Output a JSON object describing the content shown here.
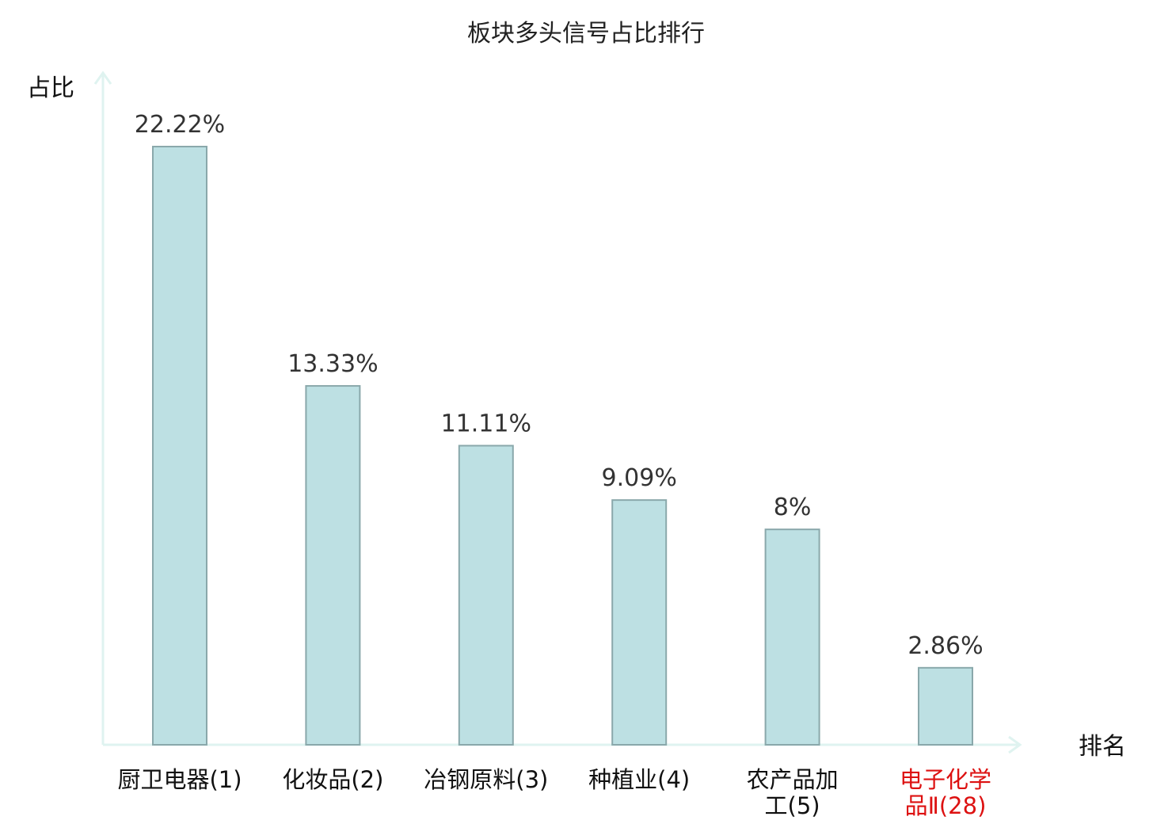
{
  "chart_data": {
    "type": "bar",
    "title": "板块多头信号占比排行",
    "xlabel": "排名",
    "ylabel": "占比",
    "categories": [
      {
        "name": "厨卫电器",
        "rank": "(1)",
        "lines": [
          "厨卫电器(1)"
        ],
        "highlight": false
      },
      {
        "name": "化妆品",
        "rank": "(2)",
        "lines": [
          "化妆品(2)"
        ],
        "highlight": false
      },
      {
        "name": "冶钢原料",
        "rank": "(3)",
        "lines": [
          "冶钢原料(3)"
        ],
        "highlight": false
      },
      {
        "name": "种植业",
        "rank": "(4)",
        "lines": [
          "种植业(4)"
        ],
        "highlight": false
      },
      {
        "name": "农产品加工",
        "rank": "(5)",
        "lines": [
          "农产品加",
          "工(5)"
        ],
        "highlight": false
      },
      {
        "name": "电子化学品Ⅱ",
        "rank": "(28)",
        "lines": [
          "电子化学",
          "品Ⅱ(28)"
        ],
        "highlight": true
      }
    ],
    "values": [
      22.22,
      13.33,
      11.11,
      9.09,
      8,
      2.86
    ],
    "value_labels": [
      "22.22%",
      "13.33%",
      "11.11%",
      "9.09%",
      "8%",
      "2.86%"
    ],
    "ylim": [
      0,
      22.22
    ],
    "grid": false,
    "legend": "none",
    "colors": {
      "bar_fill": "#bde0e3",
      "bar_stroke": "#8aa8ab",
      "axis": "#dff3f0",
      "highlight": "#dd1111"
    }
  }
}
